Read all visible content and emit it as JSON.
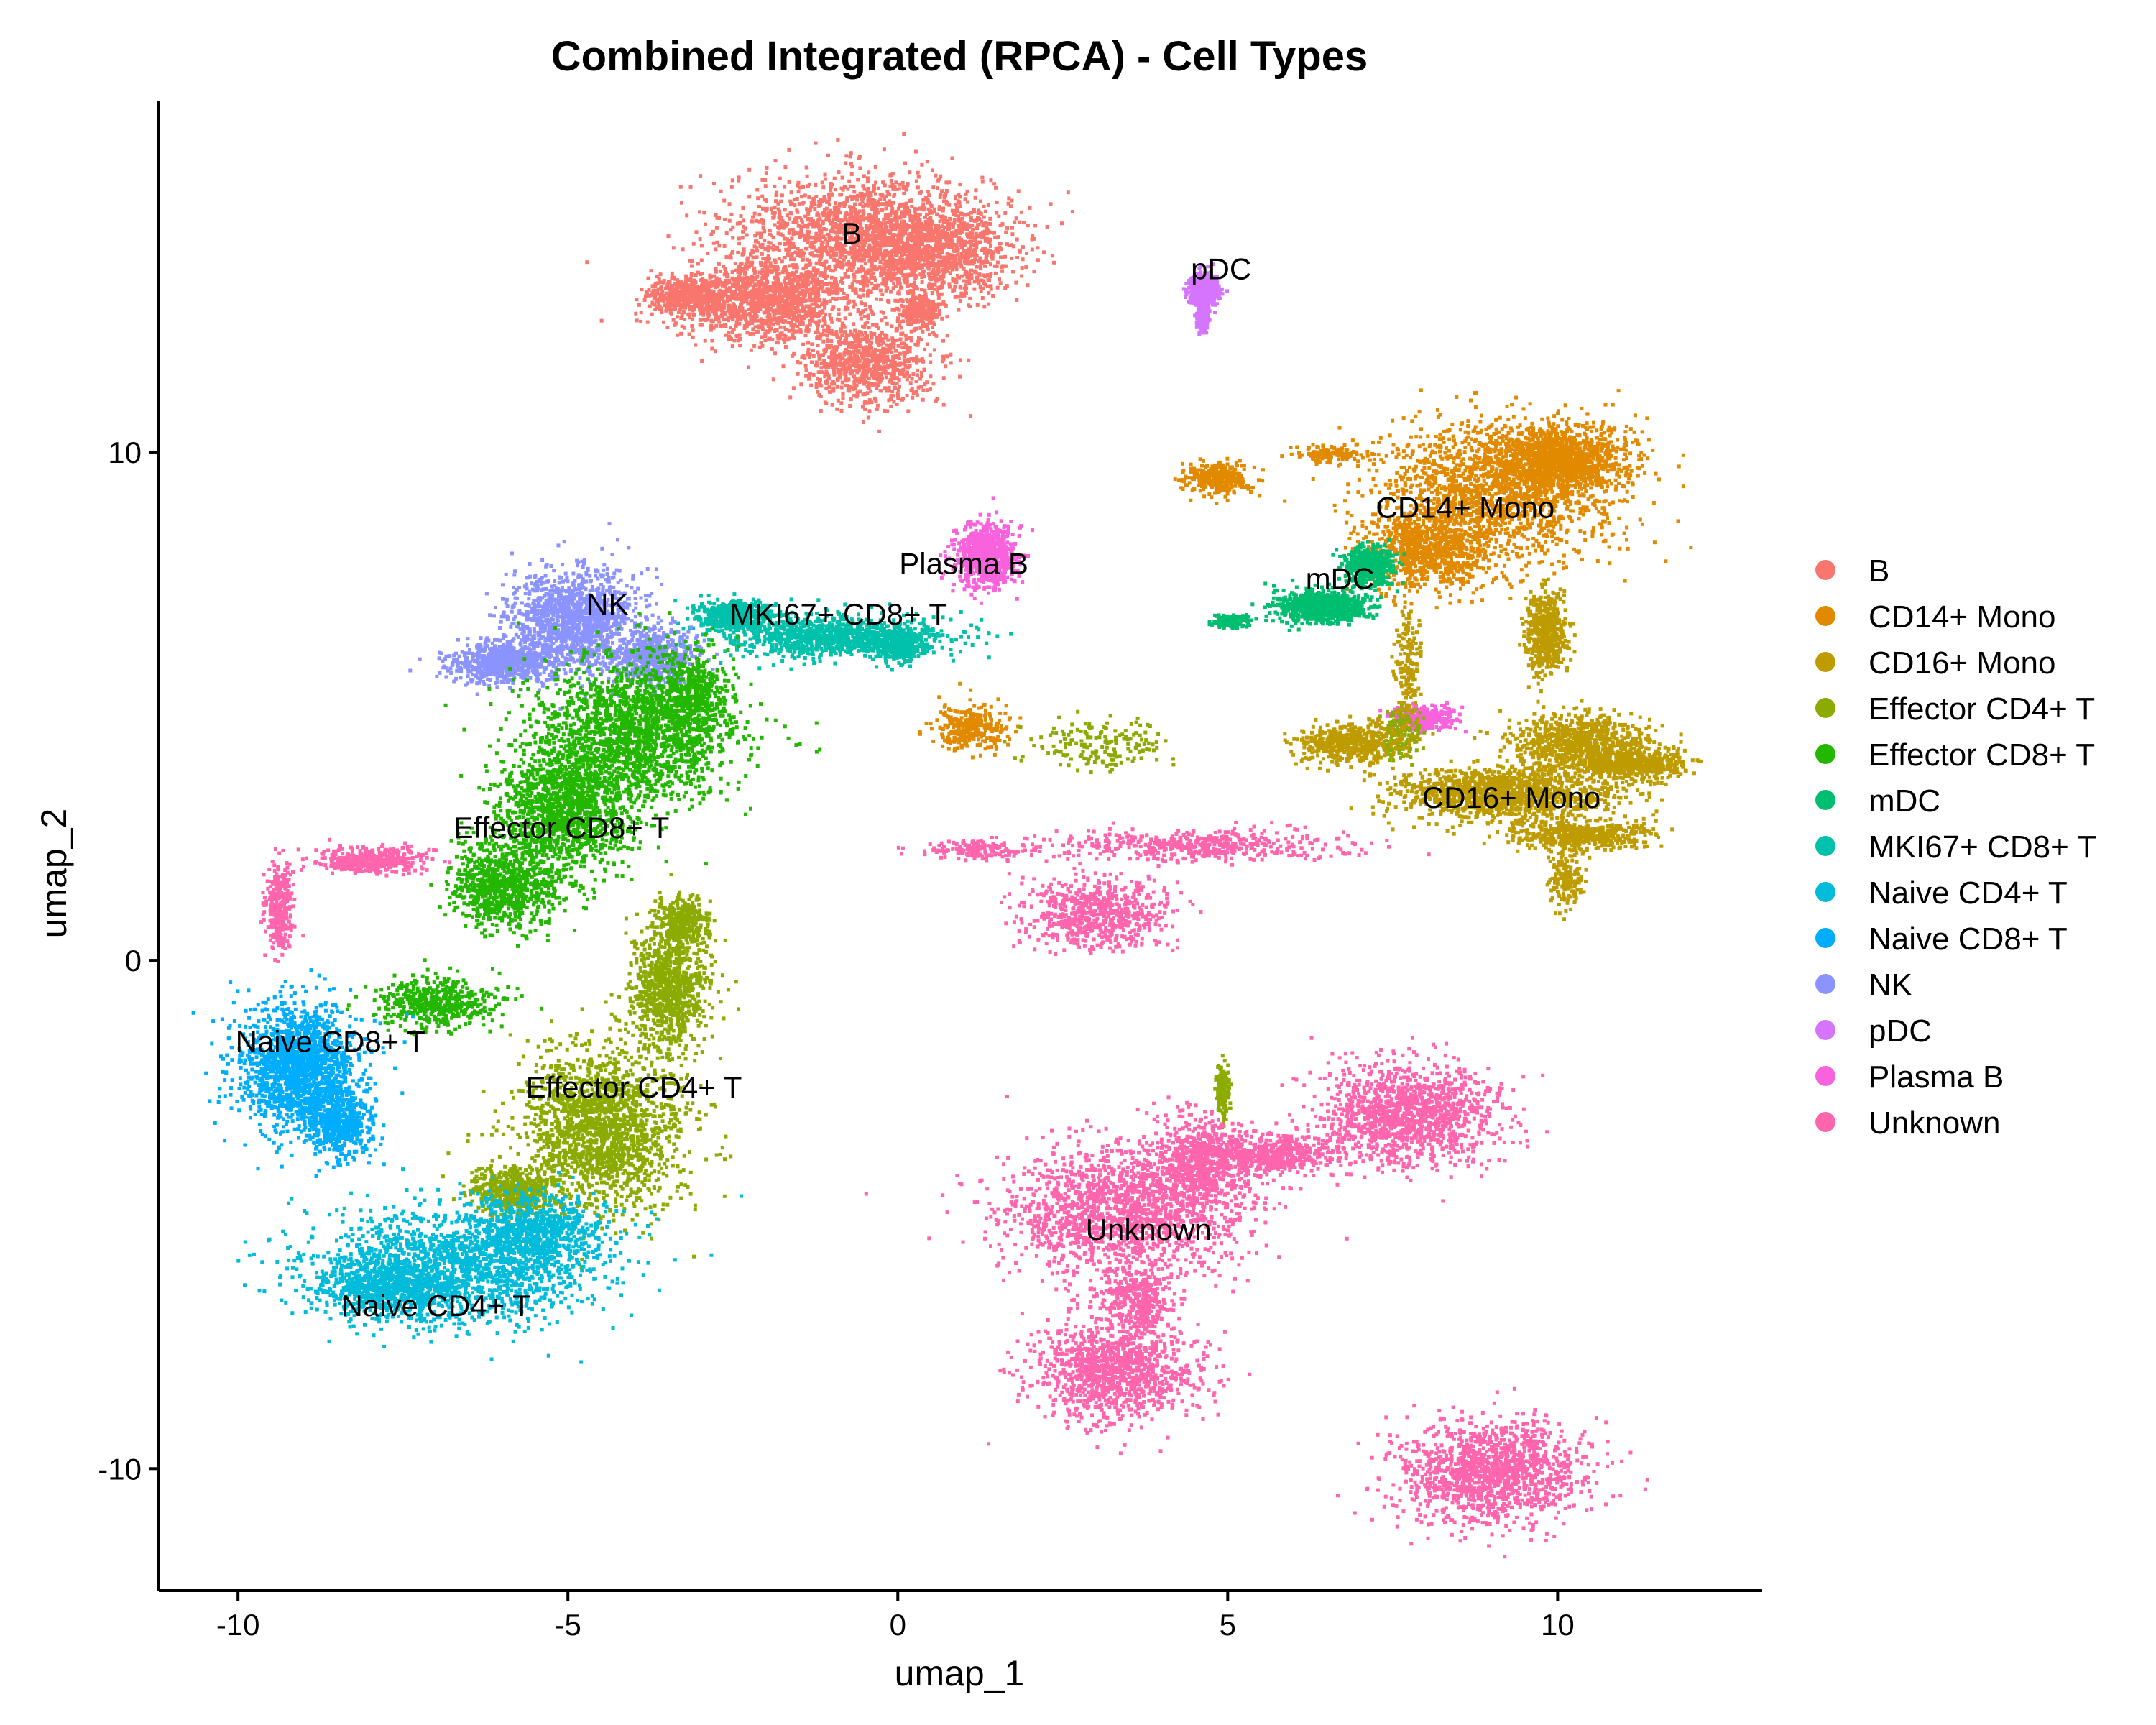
{
  "chart_data": {
    "type": "scatter",
    "title": "Combined Integrated (RPCA) - Cell Types",
    "xlabel": "umap_1",
    "ylabel": "umap_2",
    "xlim": [
      -11.2,
      13.1
    ],
    "ylim": [
      -12.4,
      16.9
    ],
    "xticks": [
      {
        "value": -10,
        "label": "-10"
      },
      {
        "value": -5,
        "label": "-5"
      },
      {
        "value": 0,
        "label": "0"
      },
      {
        "value": 5,
        "label": "5"
      },
      {
        "value": 10,
        "label": "10"
      }
    ],
    "yticks": [
      {
        "value": -10,
        "label": "-10"
      },
      {
        "value": 0,
        "label": "0"
      },
      {
        "value": 10,
        "label": "10"
      }
    ],
    "grid": false,
    "legend_position": "right",
    "legend": [
      {
        "name": "B",
        "color": "#F8766D"
      },
      {
        "name": "CD14+ Mono",
        "color": "#E18A00"
      },
      {
        "name": "CD16+ Mono",
        "color": "#BE9C00"
      },
      {
        "name": "Effector CD4+ T",
        "color": "#8CAB00"
      },
      {
        "name": "Effector CD8+ T",
        "color": "#24B700"
      },
      {
        "name": "mDC",
        "color": "#00BE70"
      },
      {
        "name": "MKI67+ CD8+ T",
        "color": "#00C1AB"
      },
      {
        "name": "Naive CD4+ T",
        "color": "#00BBDA"
      },
      {
        "name": "Naive CD8+ T",
        "color": "#00ACFC"
      },
      {
        "name": "NK",
        "color": "#8B93FF"
      },
      {
        "name": "pDC",
        "color": "#D575FE"
      },
      {
        "name": "Plasma B",
        "color": "#F962DD"
      },
      {
        "name": "Unknown",
        "color": "#FF65AC"
      }
    ],
    "clusters": [
      {
        "name": "B",
        "label": "B",
        "label_x": -0.7,
        "label_y": 14.3,
        "color": "#F8766D",
        "blobs": [
          [
            -0.6,
            14.3,
            2.0,
            1.2,
            1.0
          ],
          [
            -2.0,
            13.0,
            1.2,
            0.8,
            0.7
          ],
          [
            0.5,
            14.0,
            1.2,
            0.9,
            0.6
          ],
          [
            -0.5,
            11.8,
            1.0,
            0.8,
            0.5
          ],
          [
            -3.2,
            13.1,
            0.6,
            0.4,
            0.3
          ],
          [
            0.3,
            12.8,
            0.3,
            0.3,
            0.15
          ]
        ]
      },
      {
        "name": "pDC",
        "label": "pDC",
        "label_x": 4.9,
        "label_y": 13.6,
        "color": "#D575FE",
        "blobs": [
          [
            4.6,
            13.2,
            0.2,
            0.3,
            0.5
          ],
          [
            4.6,
            12.7,
            0.08,
            0.25,
            0.2
          ]
        ]
      },
      {
        "name": "CD14+ Mono",
        "label": "CD14+ Mono",
        "label_x": 8.6,
        "label_y": 8.9,
        "color": "#E18A00",
        "blobs": [
          [
            9.0,
            9.3,
            1.8,
            1.3,
            1.0
          ],
          [
            10.0,
            9.9,
            1.0,
            0.7,
            0.6
          ],
          [
            8.0,
            8.1,
            1.0,
            0.8,
            0.5
          ],
          [
            4.8,
            9.5,
            0.5,
            0.3,
            0.2
          ],
          [
            6.5,
            10.0,
            0.5,
            0.15,
            0.08
          ],
          [
            1.1,
            4.6,
            0.55,
            0.45,
            0.18
          ]
        ]
      },
      {
        "name": "mDC",
        "label": "mDC",
        "label_x": 6.7,
        "label_y": 7.5,
        "color": "#00BE70",
        "blobs": [
          [
            6.4,
            7.0,
            0.7,
            0.3,
            0.5
          ],
          [
            7.1,
            7.8,
            0.35,
            0.35,
            0.3
          ],
          [
            5.0,
            6.7,
            0.25,
            0.12,
            0.1
          ]
        ]
      },
      {
        "name": "Plasma B",
        "label": "Plasma B",
        "label_x": 1.0,
        "label_y": 7.8,
        "color": "#F962DD",
        "blobs": [
          [
            1.3,
            8.0,
            0.45,
            0.6,
            0.5
          ],
          [
            7.9,
            4.8,
            0.5,
            0.25,
            0.2
          ]
        ]
      },
      {
        "name": "MKI67+ CD8+ T",
        "label": "MKI67+ CD8+ T",
        "label_x": -0.9,
        "label_y": 6.8,
        "color": "#00C1AB",
        "blobs": [
          [
            -1.0,
            6.4,
            1.6,
            0.4,
            0.6
          ],
          [
            -2.5,
            6.8,
            0.6,
            0.3,
            0.3
          ],
          [
            0.0,
            6.2,
            0.4,
            0.3,
            0.2
          ]
        ]
      },
      {
        "name": "NK",
        "label": "NK",
        "label_x": -4.4,
        "label_y": 7.0,
        "color": "#8B93FF",
        "blobs": [
          [
            -4.9,
            6.7,
            1.0,
            1.0,
            0.8
          ],
          [
            -6.0,
            5.9,
            0.8,
            0.4,
            0.4
          ],
          [
            -3.7,
            6.0,
            0.6,
            0.5,
            0.3
          ]
        ]
      },
      {
        "name": "Effector CD8+ T",
        "label": "Effector CD8+ T",
        "label_x": -5.1,
        "label_y": 2.6,
        "color": "#24B700",
        "blobs": [
          [
            -4.0,
            4.5,
            1.5,
            1.4,
            1.0
          ],
          [
            -5.1,
            3.0,
            1.0,
            1.2,
            0.8
          ],
          [
            -6.0,
            1.5,
            0.8,
            0.8,
            0.5
          ],
          [
            -7.0,
            -0.8,
            0.9,
            0.5,
            0.3
          ],
          [
            -3.2,
            5.2,
            0.6,
            0.9,
            0.3
          ]
        ]
      },
      {
        "name": "Effector CD4+ T",
        "label": "Effector CD4+ T",
        "label_x": -4.0,
        "label_y": -2.5,
        "color": "#8CAB00",
        "blobs": [
          [
            -4.5,
            -3.3,
            1.2,
            1.6,
            1.0
          ],
          [
            -3.5,
            -0.5,
            0.6,
            1.2,
            0.5
          ],
          [
            -3.3,
            0.8,
            0.4,
            0.5,
            0.2
          ],
          [
            -5.8,
            -4.5,
            0.7,
            0.5,
            0.3
          ],
          [
            3.0,
            4.3,
            1.0,
            0.5,
            0.1
          ],
          [
            7.6,
            4.5,
            0.3,
            0.6,
            0.1
          ],
          [
            4.9,
            -2.5,
            0.1,
            0.5,
            0.1
          ]
        ]
      },
      {
        "name": "Naive CD8+ T",
        "label": "Naive CD8+ T",
        "label_x": -8.6,
        "label_y": -1.6,
        "color": "#00ACFC",
        "blobs": [
          [
            -9.1,
            -2.1,
            0.9,
            1.2,
            1.0
          ],
          [
            -8.5,
            -3.2,
            0.5,
            0.6,
            0.3
          ]
        ]
      },
      {
        "name": "Naive CD4+ T",
        "label": "Naive CD4+ T",
        "label_x": -7.0,
        "label_y": -6.8,
        "color": "#00BBDA",
        "blobs": [
          [
            -6.8,
            -6.0,
            2.2,
            1.1,
            1.0
          ],
          [
            -5.5,
            -5.3,
            1.0,
            0.7,
            0.4
          ],
          [
            -7.8,
            -6.4,
            0.9,
            0.5,
            0.4
          ]
        ]
      },
      {
        "name": "CD16+ Mono",
        "label": "CD16+ Mono",
        "label_x": 9.3,
        "label_y": 3.2,
        "color": "#BE9C00",
        "blobs": [
          [
            9.2,
            3.3,
            1.6,
            0.5,
            0.8
          ],
          [
            10.3,
            4.3,
            1.0,
            0.6,
            0.5
          ],
          [
            11.2,
            3.9,
            0.7,
            0.3,
            0.3
          ],
          [
            10.3,
            2.5,
            1.0,
            0.3,
            0.3
          ],
          [
            9.8,
            6.5,
            0.3,
            0.8,
            0.3
          ],
          [
            6.8,
            4.3,
            0.8,
            0.4,
            0.3
          ],
          [
            7.7,
            5.8,
            0.2,
            1.0,
            0.1
          ],
          [
            10.1,
            1.6,
            0.25,
            0.5,
            0.1
          ]
        ]
      },
      {
        "name": "Unknown",
        "label": "Unknown",
        "label_x": 3.8,
        "label_y": -5.3,
        "color": "#FF65AC",
        "blobs": [
          [
            3.4,
            -4.9,
            1.8,
            1.3,
            1.0
          ],
          [
            7.7,
            -3.0,
            1.3,
            1.0,
            0.8
          ],
          [
            3.3,
            -8.0,
            1.2,
            1.0,
            0.7
          ],
          [
            9.0,
            -10.0,
            1.4,
            1.0,
            0.8
          ],
          [
            4.6,
            -3.9,
            0.7,
            0.9,
            0.4
          ],
          [
            5.7,
            -3.8,
            1.0,
            0.4,
            0.3
          ],
          [
            3.0,
            1.0,
            1.0,
            0.7,
            0.4
          ],
          [
            4.6,
            2.3,
            2.0,
            0.3,
            0.3
          ],
          [
            -8.0,
            2.0,
            0.8,
            0.25,
            0.25
          ],
          [
            -9.4,
            1.0,
            0.2,
            0.8,
            0.2
          ],
          [
            1.2,
            2.2,
            0.8,
            0.2,
            0.1
          ],
          [
            3.6,
            -6.6,
            0.5,
            0.6,
            0.2
          ]
        ]
      }
    ]
  }
}
